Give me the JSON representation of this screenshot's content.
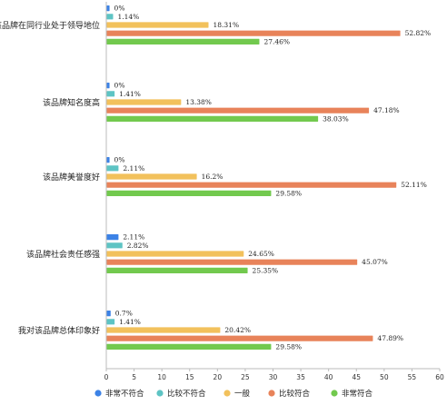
{
  "chart_data": {
    "type": "bar",
    "orientation": "horizontal",
    "categories": [
      "该品牌在同行业处于领导地位",
      "该品牌知名度高",
      "该品牌美誉度好",
      "该品牌社会责任感强",
      "我对该品牌总体印象好"
    ],
    "series": [
      {
        "name": "非常不符合",
        "color": "#3c82e6",
        "values": [
          0,
          0,
          0,
          2.11,
          0.7
        ],
        "labels": [
          "0%",
          "0%",
          "0%",
          "2.11%",
          "0.7%"
        ]
      },
      {
        "name": "比较不符合",
        "color": "#5ec4c4",
        "values": [
          1.14,
          1.41,
          2.11,
          2.82,
          1.41
        ],
        "labels": [
          "1.14%",
          "1.41%",
          "2.11%",
          "2.82%",
          "1.41%"
        ]
      },
      {
        "name": "一般",
        "color": "#f2c15c",
        "values": [
          18.31,
          13.38,
          16.2,
          24.65,
          20.42
        ],
        "labels": [
          "18.31%",
          "13.38%",
          "16.2%",
          "24.65%",
          "20.42%"
        ]
      },
      {
        "name": "比较符合",
        "color": "#e8835a",
        "values": [
          52.82,
          47.18,
          52.11,
          45.07,
          47.89
        ],
        "labels": [
          "52.82%",
          "47.18%",
          "52.11%",
          "45.07%",
          "47.89%"
        ]
      },
      {
        "name": "非常符合",
        "color": "#72c94e",
        "values": [
          27.46,
          38.03,
          29.58,
          25.35,
          29.58
        ],
        "labels": [
          "27.46%",
          "38.03%",
          "29.58%",
          "25.35%",
          "29.58%"
        ]
      }
    ],
    "xlim": [
      0,
      60
    ],
    "xticks": [
      0,
      5,
      10,
      15,
      20,
      25,
      30,
      35,
      40,
      45,
      50,
      55,
      60
    ],
    "grid": false,
    "legend_position": "bottom"
  }
}
